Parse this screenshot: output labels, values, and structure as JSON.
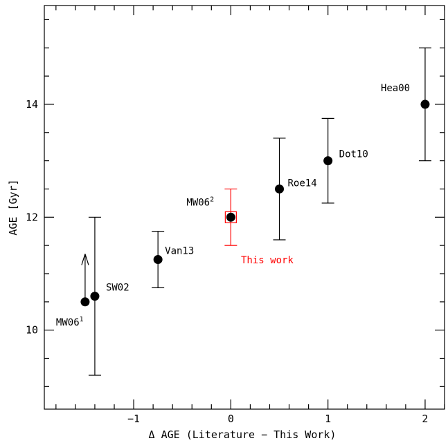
{
  "chart_data": {
    "type": "scatter",
    "title": "",
    "xlabel": "Δ AGE (Literature − This Work)",
    "ylabel": "AGE [Gyr]",
    "xlim": [
      -1.92,
      2.2
    ],
    "ylim": [
      8.6,
      15.75
    ],
    "x_ticks": [
      -1,
      0,
      1,
      2
    ],
    "y_ticks": [
      10,
      12,
      14
    ],
    "x_tick_labels": [
      "−1",
      "0",
      "1",
      "2"
    ],
    "y_tick_labels": [
      "10",
      "12",
      "14"
    ],
    "grid": false,
    "colors": {
      "default": "#000000",
      "highlight": "#ff0000"
    },
    "points": [
      {
        "label": "MW06",
        "sup": "1",
        "x": -1.5,
        "y": 10.5,
        "lower_limit": true,
        "arrow_top": 11.35
      },
      {
        "label": "SW02",
        "sup": "",
        "x": -1.4,
        "y": 10.6,
        "err_low": 9.2,
        "err_high": 12.0
      },
      {
        "label": "Van13",
        "sup": "",
        "x": -0.75,
        "y": 11.25,
        "err_low": 10.75,
        "err_high": 11.75
      },
      {
        "label": "MW06",
        "sup": "2",
        "x": 0.0,
        "y": 12.0,
        "err_low": 11.5,
        "err_high": 12.5,
        "highlight": true
      },
      {
        "label": "Roe14",
        "sup": "",
        "x": 0.5,
        "y": 12.5,
        "err_low": 11.6,
        "err_high": 13.4
      },
      {
        "label": "Dot10",
        "sup": "",
        "x": 1.0,
        "y": 13.0,
        "err_low": 12.25,
        "err_high": 13.75
      },
      {
        "label": "Hea00",
        "sup": "",
        "x": 2.0,
        "y": 14.0,
        "err_low": 13.0,
        "err_high": 15.0
      }
    ],
    "annotations": [
      {
        "text": "This work",
        "color": "#ff0000"
      }
    ]
  }
}
